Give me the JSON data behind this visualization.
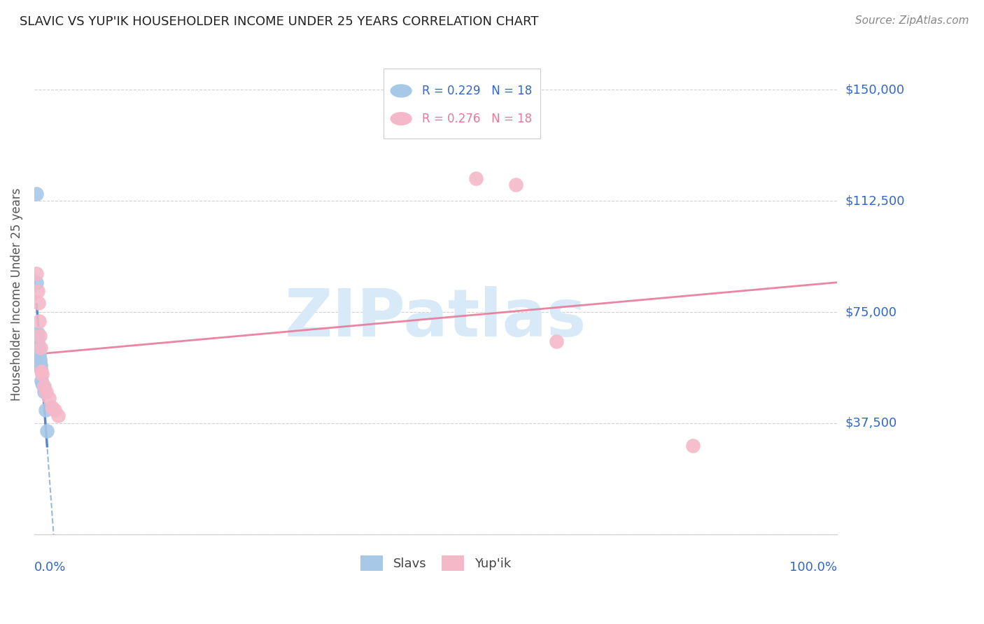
{
  "title": "SLAVIC VS YUP'IK HOUSEHOLDER INCOME UNDER 25 YEARS CORRELATION CHART",
  "source": "Source: ZipAtlas.com",
  "ylabel": "Householder Income Under 25 years",
  "yticks": [
    0,
    37500,
    75000,
    112500,
    150000
  ],
  "ytick_labels": [
    "",
    "$37,500",
    "$75,000",
    "$112,500",
    "$150,000"
  ],
  "ylim": [
    0,
    162000
  ],
  "xlim": [
    0.0,
    1.0
  ],
  "slavs_R": 0.229,
  "slavs_N": 18,
  "yupik_R": 0.276,
  "yupik_N": 18,
  "slavs_color": "#a8c8e8",
  "yupik_color": "#f5b8c8",
  "slavs_line_color": "#5588cc",
  "yupik_line_color": "#e87898",
  "axis_label_color": "#3366cc",
  "title_color": "#222222",
  "source_color": "#888888",
  "ylabel_color": "#555555",
  "watermark_color": "#d8eaf8",
  "grid_color": "#cccccc",
  "background_color": "#ffffff",
  "slavs_x": [
    0.003,
    0.003,
    0.004,
    0.004,
    0.005,
    0.005,
    0.006,
    0.006,
    0.007,
    0.007,
    0.008,
    0.008,
    0.009,
    0.01,
    0.011,
    0.012,
    0.014,
    0.016
  ],
  "slavs_y": [
    115000,
    85000,
    68000,
    65000,
    63000,
    62000,
    61000,
    60000,
    59000,
    58000,
    57000,
    56000,
    52000,
    51000,
    50000,
    48000,
    42000,
    35000
  ],
  "yupik_x": [
    0.003,
    0.004,
    0.005,
    0.006,
    0.007,
    0.008,
    0.009,
    0.01,
    0.012,
    0.015,
    0.018,
    0.022,
    0.025,
    0.03,
    0.55,
    0.6,
    0.65,
    0.82
  ],
  "yupik_y": [
    88000,
    82000,
    78000,
    72000,
    67000,
    63000,
    55000,
    54000,
    50000,
    48000,
    46000,
    43000,
    42000,
    40000,
    120000,
    118000,
    65000,
    30000
  ]
}
